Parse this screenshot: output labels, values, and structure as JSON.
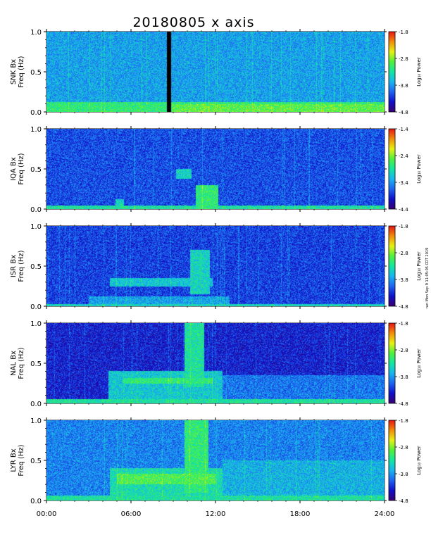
{
  "chart_data": {
    "type": "heatmap",
    "title": "20180805 x axis",
    "xlabel": "",
    "xlim": [
      0,
      24
    ],
    "x_ticks": [
      "00:00",
      "06:00",
      "12:00",
      "18:00",
      "24:00"
    ],
    "y_ticks": [
      "0.0",
      "0.5",
      "1.0"
    ],
    "colorbar_label": "Log₁₀ Power",
    "side_note": "ran Mon Sep 9 11:05:05 CDT 2019",
    "colormap": [
      "#3a006e",
      "#1010c8",
      "#1e64f0",
      "#19b4f0",
      "#14e6a0",
      "#50f03c",
      "#e6f014",
      "#f08c0a",
      "#e61414"
    ],
    "panels": [
      {
        "ylabel": [
          "SNK Bx",
          "Freq (Hz)"
        ],
        "ylim": [
          0,
          1
        ],
        "cbar_ticks": [
          "-1.8",
          "-2.8",
          "-3.8",
          "-4.8"
        ],
        "cbar_range": [
          -4.8,
          -1.8
        ],
        "base_level": 0.35,
        "data_gap": [
          8.55,
          8.85
        ],
        "features": [
          {
            "t0": 0,
            "t1": 24,
            "f0": 0,
            "f1": 0.12,
            "level": 0.55
          },
          {
            "t0": 8.9,
            "t1": 24,
            "f0": 0,
            "f1": 0.1,
            "level": 0.62
          }
        ]
      },
      {
        "ylabel": [
          "IQA Bx",
          "Freq (Hz)"
        ],
        "ylim": [
          0,
          1
        ],
        "cbar_ticks": [
          "-1.4",
          "-2.4",
          "-3.4",
          "-4.4"
        ],
        "cbar_range": [
          -4.4,
          -1.4
        ],
        "base_level": 0.22,
        "data_gap": null,
        "features": [
          {
            "t0": 0,
            "t1": 24,
            "f0": 0,
            "f1": 0.04,
            "level": 0.5
          },
          {
            "t0": 9.2,
            "t1": 10.3,
            "f0": 0.38,
            "f1": 0.5,
            "level": 0.45
          },
          {
            "t0": 10.6,
            "t1": 12.2,
            "f0": 0,
            "f1": 0.3,
            "level": 0.55
          },
          {
            "t0": 4.9,
            "t1": 5.5,
            "f0": 0,
            "f1": 0.12,
            "level": 0.45
          }
        ]
      },
      {
        "ylabel": [
          "ISR Bx",
          "Freq (Hz)"
        ],
        "ylim": [
          0,
          1
        ],
        "cbar_ticks": [
          "-1.8",
          "-2.8",
          "-3.8",
          "-4.8"
        ],
        "cbar_range": [
          -4.8,
          -1.8
        ],
        "base_level": 0.2,
        "data_gap": null,
        "features": [
          {
            "t0": 0,
            "t1": 24,
            "f0": 0,
            "f1": 0.03,
            "level": 0.45
          },
          {
            "t0": 4.5,
            "t1": 11.8,
            "f0": 0.25,
            "f1": 0.35,
            "level": 0.42
          },
          {
            "t0": 10.2,
            "t1": 11.6,
            "f0": 0.15,
            "f1": 0.7,
            "level": 0.45
          },
          {
            "t0": 3,
            "t1": 13,
            "f0": 0,
            "f1": 0.12,
            "level": 0.35
          }
        ]
      },
      {
        "ylabel": [
          "NAL Bx",
          "Freq (Hz)"
        ],
        "ylim": [
          0,
          1
        ],
        "cbar_ticks": [
          "-1.8",
          "-2.8",
          "-3.8",
          "-4.8"
        ],
        "cbar_range": [
          -4.8,
          -1.8
        ],
        "base_level": 0.15,
        "data_gap": null,
        "features": [
          {
            "t0": 0,
            "t1": 24,
            "f0": 0,
            "f1": 0.05,
            "level": 0.5
          },
          {
            "t0": 4.4,
            "t1": 12.5,
            "f0": 0,
            "f1": 0.4,
            "level": 0.42
          },
          {
            "t0": 9.8,
            "t1": 11.2,
            "f0": 0.2,
            "f1": 1.0,
            "level": 0.5
          },
          {
            "t0": 5.5,
            "t1": 11.8,
            "f0": 0.25,
            "f1": 0.32,
            "level": 0.55
          },
          {
            "t0": 12.5,
            "t1": 24,
            "f0": 0,
            "f1": 0.35,
            "level": 0.28
          }
        ]
      },
      {
        "ylabel": [
          "LYR Bx",
          "Freq (Hz)"
        ],
        "ylim": [
          0,
          1
        ],
        "cbar_ticks": [
          "-1.8",
          "-2.8",
          "-3.8",
          "-4.8"
        ],
        "cbar_range": [
          -4.8,
          -1.8
        ],
        "base_level": 0.3,
        "data_gap": null,
        "features": [
          {
            "t0": 0,
            "t1": 24,
            "f0": 0,
            "f1": 0.06,
            "level": 0.5
          },
          {
            "t0": 4.5,
            "t1": 12.5,
            "f0": 0,
            "f1": 0.4,
            "level": 0.48
          },
          {
            "t0": 9.8,
            "t1": 11.5,
            "f0": 0.1,
            "f1": 1.0,
            "level": 0.55
          },
          {
            "t0": 5,
            "t1": 12,
            "f0": 0.2,
            "f1": 0.33,
            "level": 0.6
          },
          {
            "t0": 12.5,
            "t1": 24,
            "f0": 0,
            "f1": 0.5,
            "level": 0.38
          }
        ]
      }
    ]
  }
}
